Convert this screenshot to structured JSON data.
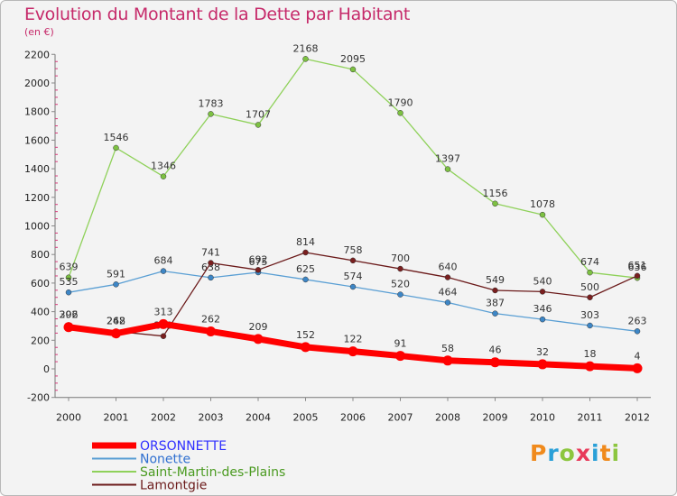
{
  "title": "Evolution du Montant de la Dette par Habitant",
  "unit_note": "(en €)",
  "logo": "Proxiti",
  "colors": {
    "background": "#f3f3f3",
    "title": "#c62a6a",
    "logo_letters": [
      "#f08a1c",
      "#2aa0d8",
      "#8cc63f",
      "#e83a5a",
      "#2aa0d8",
      "#f08a1c",
      "#8cc63f"
    ]
  },
  "chart_data": {
    "type": "line",
    "x": [
      "2000",
      "2001",
      "2002",
      "2003",
      "2004",
      "2005",
      "2006",
      "2007",
      "2008",
      "2009",
      "2010",
      "2011",
      "2012"
    ],
    "ylim": [
      -200,
      2200
    ],
    "yticks": [
      -200,
      0,
      200,
      400,
      600,
      800,
      1000,
      1200,
      1400,
      1600,
      1800,
      2000,
      2200
    ],
    "grid": false,
    "legend_position": "bottom-left",
    "series": [
      {
        "name": "Saint-Martin-des-Plains",
        "color": "#8fd15a",
        "marker": "#7dc142",
        "width": 1.3,
        "values": [
          639,
          1546,
          1346,
          1783,
          1707,
          2168,
          2095,
          1790,
          1397,
          1156,
          1078,
          674,
          636
        ]
      },
      {
        "name": "Nonette",
        "color": "#5a9fd4",
        "marker": "#3d86c6",
        "width": 1.3,
        "values": [
          535,
          591,
          684,
          638,
          675,
          625,
          574,
          520,
          464,
          387,
          346,
          303,
          263
        ]
      },
      {
        "name": "Lamontgie",
        "color": "#6b1a1a",
        "marker": "#7a1f1f",
        "width": 1.3,
        "values": [
          306,
          262,
          229,
          741,
          692,
          814,
          758,
          700,
          640,
          549,
          540,
          500,
          651
        ]
      },
      {
        "name": "ORSONNETTE",
        "color": "#ff0000",
        "marker": "#ff0000",
        "width": 7,
        "values": [
          292,
          248,
          313,
          262,
          209,
          152,
          122,
          91,
          58,
          46,
          32,
          18,
          4
        ]
      }
    ],
    "legend_order": [
      "ORSONNETTE",
      "Nonette",
      "Saint-Martin-des-Plains",
      "Lamontgie"
    ],
    "legend_colors": [
      "#3030ff",
      "#3070d0",
      "#4a9a20",
      "#6b1a1a"
    ]
  }
}
